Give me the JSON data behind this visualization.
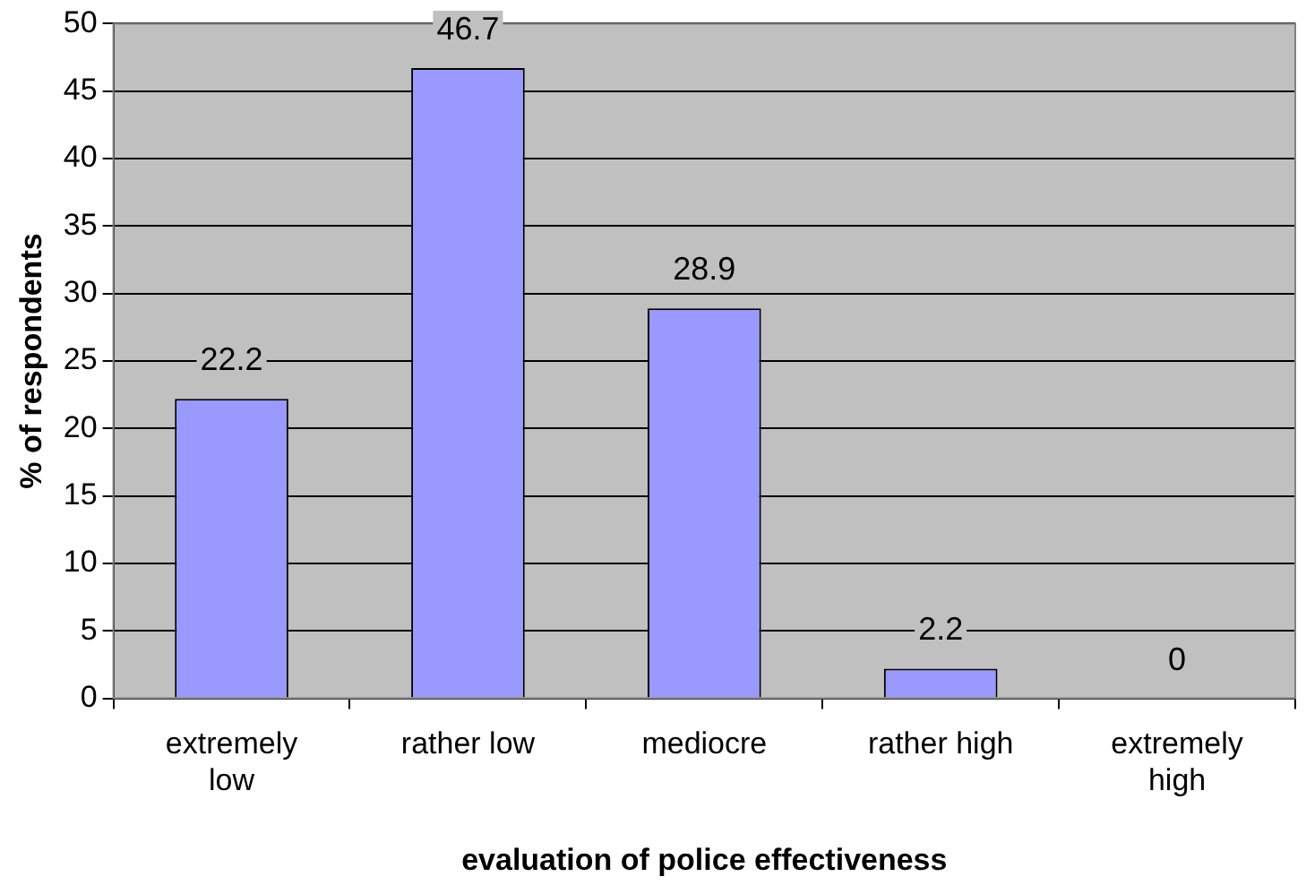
{
  "chart_data": {
    "type": "bar",
    "xlabel": "evaluation of police effectiveness",
    "ylabel": "% of respondents",
    "categories": [
      "extremely low",
      "rather low",
      "mediocre",
      "rather high",
      "extremely high"
    ],
    "values": [
      22.2,
      46.7,
      28.9,
      2.2,
      0
    ],
    "color": "#9999ff",
    "ylim": [
      0,
      50
    ],
    "yticks": [
      0,
      5,
      10,
      15,
      20,
      25,
      30,
      35,
      40,
      45,
      50
    ],
    "grid": "y",
    "data_labels": true,
    "legend": false
  }
}
